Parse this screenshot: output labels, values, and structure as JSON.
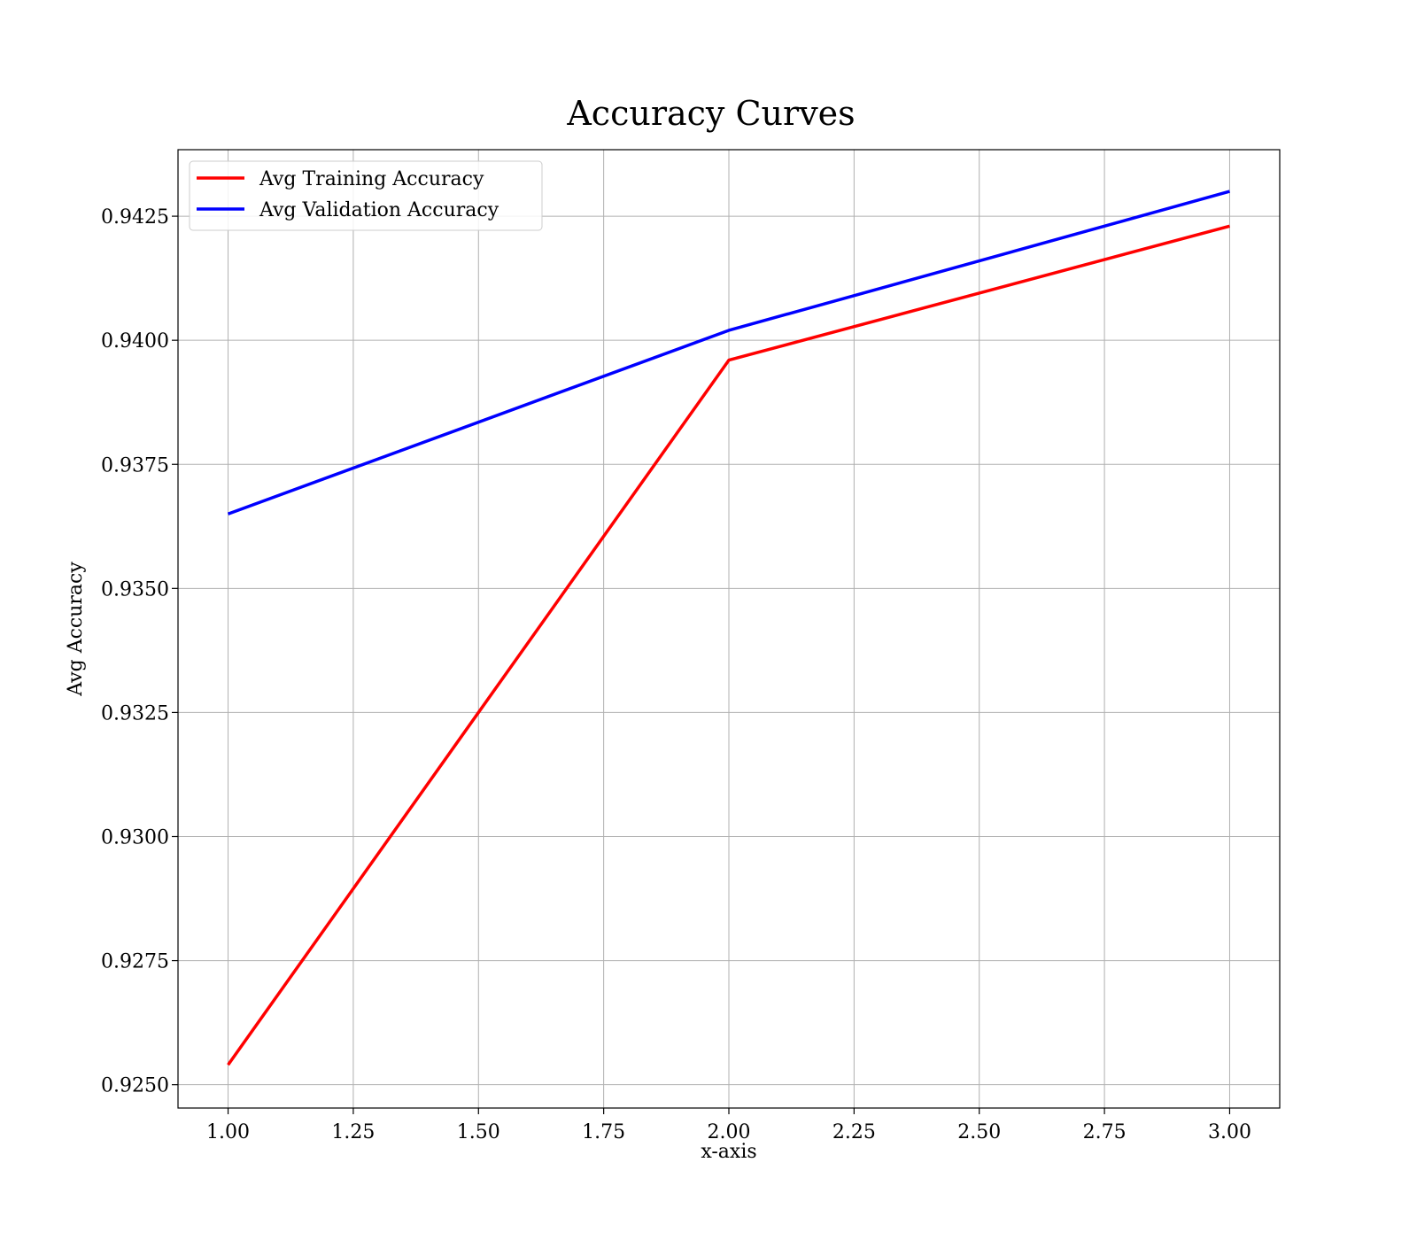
{
  "chart_data": {
    "type": "line",
    "title": "Accuracy Curves",
    "xlabel": "x-axis",
    "ylabel": "Avg Accuracy",
    "x": [
      1,
      2,
      3
    ],
    "series": [
      {
        "name": "Avg Training Accuracy",
        "color": "#ff0000",
        "values": [
          0.9254,
          0.9396,
          0.9423
        ]
      },
      {
        "name": "Avg Validation Accuracy",
        "color": "#0000ff",
        "values": [
          0.9365,
          0.9402,
          0.943
        ]
      }
    ],
    "xlim": [
      0.9,
      3.1
    ],
    "ylim": [
      0.92453,
      0.94384
    ],
    "xticks": [
      "1.00",
      "1.25",
      "1.50",
      "1.75",
      "2.00",
      "2.25",
      "2.50",
      "2.75",
      "3.00"
    ],
    "yticks": [
      "0.9250",
      "0.9275",
      "0.9300",
      "0.9325",
      "0.9350",
      "0.9375",
      "0.9400",
      "0.9425"
    ],
    "grid": true,
    "legend_position": "top-left"
  }
}
